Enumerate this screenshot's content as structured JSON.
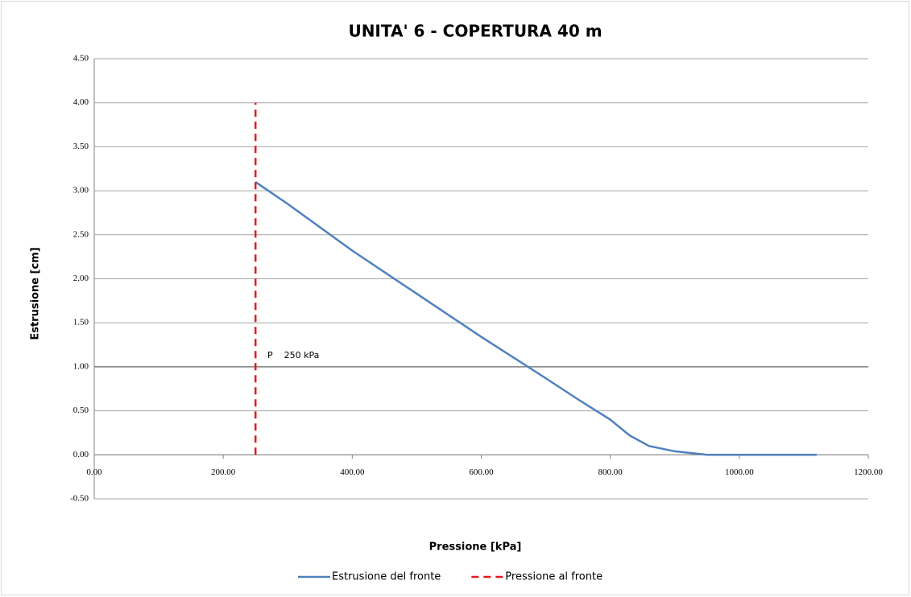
{
  "chart_data": {
    "type": "line",
    "title": "UNITA' 6 - COPERTURA 40 m",
    "xlabel": "Pressione [kPa]",
    "ylabel": "Estrusione [cm]",
    "annotation": "P    250 kPa",
    "series": [
      {
        "name": "Estrusione del fronte",
        "color": "#4f81bd",
        "dashed": false,
        "x": [
          250,
          300,
          400,
          500,
          600,
          700,
          750,
          800,
          830,
          860,
          900,
          950,
          1000,
          1050,
          1120
        ],
        "values": [
          3.1,
          2.85,
          2.32,
          1.83,
          1.34,
          0.87,
          0.63,
          0.4,
          0.22,
          0.1,
          0.04,
          0.0,
          0.0,
          0.0,
          0.0
        ]
      },
      {
        "name": "Pressione al fronte",
        "color": "#e41a1c",
        "dashed": true,
        "x": [
          250,
          250
        ],
        "values": [
          0,
          4
        ]
      }
    ],
    "reference_line": 1,
    "xlim": [
      0,
      1200
    ],
    "xticks": [
      {
        "value": 0,
        "label": "0.00"
      },
      {
        "value": 200,
        "label": "200.00"
      },
      {
        "value": 400,
        "label": "400.00"
      },
      {
        "value": 600,
        "label": "600.00"
      },
      {
        "value": 800,
        "label": "800.00"
      },
      {
        "value": 1000,
        "label": "1000.00"
      },
      {
        "value": 1200,
        "label": "1200.00"
      }
    ],
    "ylim": [
      -0.5,
      4.5
    ],
    "yticks": [
      {
        "value": -0.5,
        "label": "-0.50"
      },
      {
        "value": 0,
        "label": "0.00"
      },
      {
        "value": 0.5,
        "label": "0.50"
      },
      {
        "value": 1,
        "label": "1.00"
      },
      {
        "value": 1.5,
        "label": "1.50"
      },
      {
        "value": 2,
        "label": "2.00"
      },
      {
        "value": 2.5,
        "label": "2.50"
      },
      {
        "value": 3,
        "label": "3.00"
      },
      {
        "value": 3.5,
        "label": "3.50"
      },
      {
        "value": 4,
        "label": "4.00"
      },
      {
        "value": 4.5,
        "label": "4.50"
      }
    ],
    "grid": true,
    "legend": "bottom"
  }
}
